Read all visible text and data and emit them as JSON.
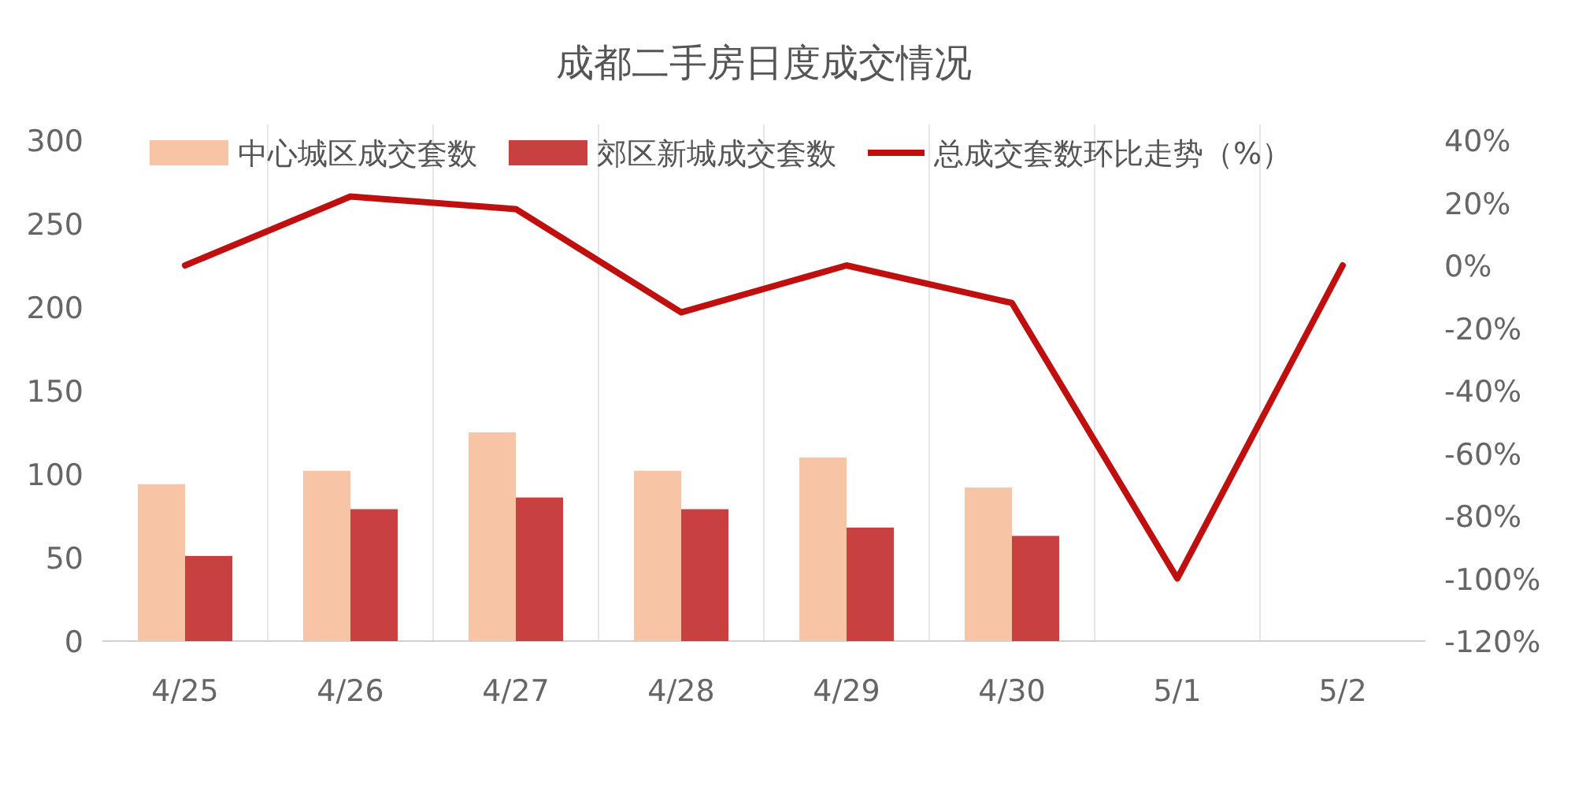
{
  "chart_data": {
    "type": "bar",
    "title": "成都二手房日度成交情况",
    "categories": [
      "4/25",
      "4/26",
      "4/27",
      "4/28",
      "4/29",
      "4/30",
      "5/1",
      "5/2"
    ],
    "series": [
      {
        "name": "中心城区成交套数",
        "color": "#f7c5a5",
        "values": [
          94,
          102,
          125,
          102,
          110,
          92,
          null,
          null
        ]
      },
      {
        "name": "郊区新城成交套数",
        "color": "#c94040",
        "values": [
          51,
          79,
          86,
          79,
          68,
          63,
          null,
          null
        ]
      },
      {
        "name": "总成交套数环比走势（%）",
        "type": "line",
        "axis": "y2",
        "color": "#c00f0f",
        "values": [
          0,
          22,
          18,
          -15,
          0,
          -12,
          -100,
          0
        ]
      }
    ],
    "ylim": [
      0,
      300
    ],
    "yticks": [
      0,
      50,
      100,
      150,
      200,
      250,
      300
    ],
    "y2lim": [
      -120,
      40
    ],
    "y2ticks": [
      {
        "value": -120,
        "label": "-120%"
      },
      {
        "value": -100,
        "label": "-100%"
      },
      {
        "value": -80,
        "label": "-80%"
      },
      {
        "value": -60,
        "label": "-60%"
      },
      {
        "value": -40,
        "label": "-40%"
      },
      {
        "value": -20,
        "label": "-20%"
      },
      {
        "value": 0,
        "label": "0%"
      },
      {
        "value": 20,
        "label": "20%"
      },
      {
        "value": 40,
        "label": "40%"
      }
    ],
    "grid": "x",
    "legend": "top"
  }
}
